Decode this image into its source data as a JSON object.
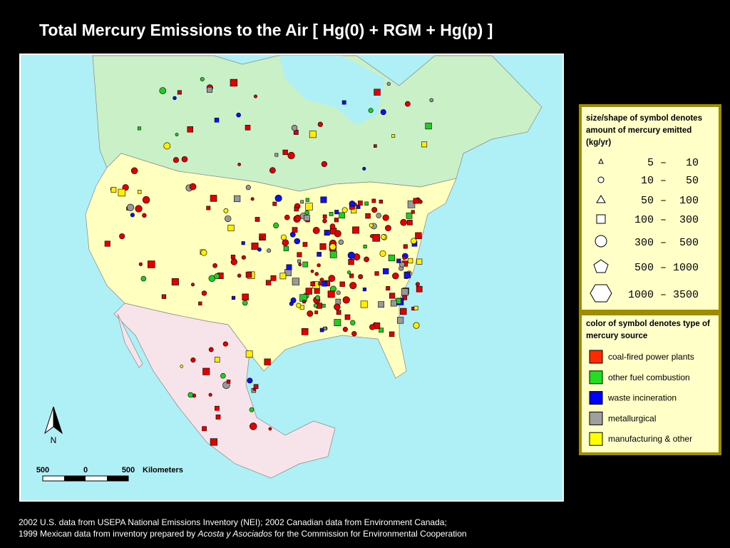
{
  "title": "Total Mercury Emissions to the Air [ Hg(0) + RGM + Hg(p) ]",
  "north_label": "N",
  "scale_bar": {
    "labels": [
      "500",
      "0",
      "500"
    ],
    "unit": "Kilometers"
  },
  "legend_size": {
    "title": "size/shape of symbol denotes amount of mercury emitted (kg/yr)",
    "rows": [
      "5 –   10",
      "10 –   50",
      "50 –  100",
      "100 –  300",
      "300 –  500",
      "500 – 1000",
      "1000 – 3500"
    ]
  },
  "legend_color": {
    "title": "color of symbol denotes type of mercury source",
    "items": [
      "coal-fired power plants",
      "other fuel combustion",
      "waste incineration",
      "metallurgical",
      "manufacturing & other"
    ]
  },
  "footnote": {
    "line1": "2002 U.S. data from USEPA National Emissions Inventory (NEI); 2002 Canadian data from Environment Canada;",
    "line2": [
      "1999 Mexican data from inventory prepared by ",
      "Acosta y Asociados",
      " for the Commission for Environmental Cooperation"
    ]
  }
}
